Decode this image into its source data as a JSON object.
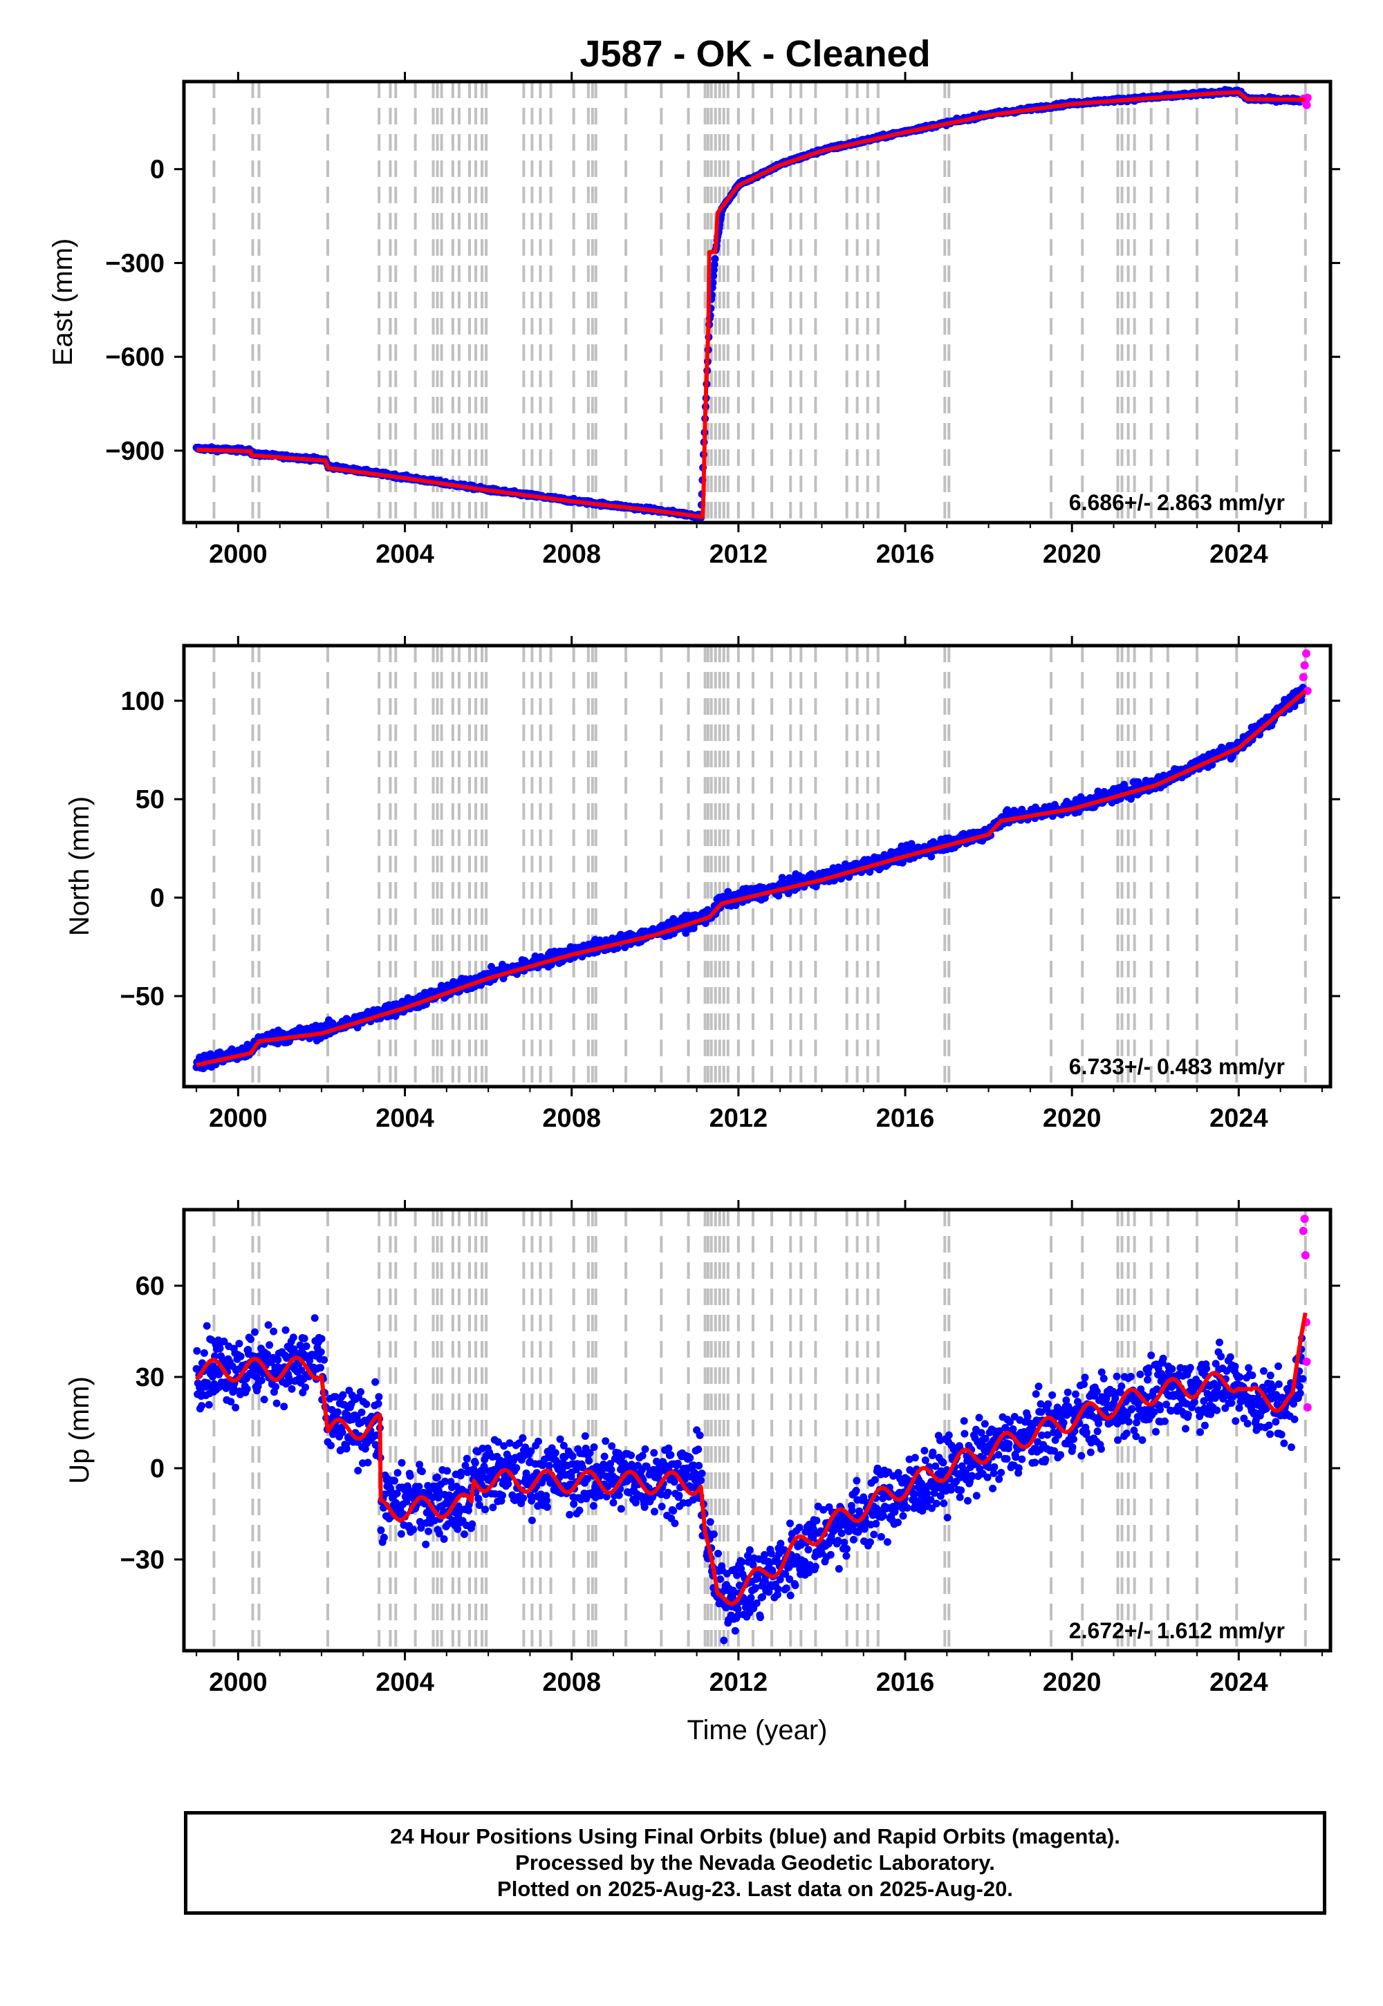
{
  "title": "J587  - OK - Cleaned",
  "colors": {
    "final": "#0000ff",
    "rapid": "#ff00ff",
    "model": "#ff0000",
    "steps": "#c0c0c0"
  },
  "step_years": [
    1999.42,
    2000.35,
    2000.5,
    2002.15,
    2003.38,
    2003.65,
    2003.78,
    2004.25,
    2004.68,
    2004.78,
    2004.88,
    2005.15,
    2005.3,
    2005.55,
    2005.7,
    2005.85,
    2005.95,
    2006.85,
    2007.05,
    2007.25,
    2007.5,
    2008.05,
    2008.4,
    2008.5,
    2008.58,
    2009.3,
    2010.15,
    2010.8,
    2011.2,
    2011.27,
    2011.35,
    2011.45,
    2011.55,
    2011.65,
    2011.75,
    2012.0,
    2012.35,
    2012.8,
    2013.25,
    2013.5,
    2013.85,
    2014.6,
    2014.85,
    2015.1,
    2015.35,
    2016.95,
    2017.05,
    2019.5,
    2020.25,
    2021.1,
    2021.2,
    2021.35,
    2021.5,
    2021.9,
    2022.3,
    2023.0,
    2023.95,
    2025.6
  ],
  "chart_data": [
    {
      "type": "scatter",
      "ylabel": "East (mm)",
      "xlim": [
        1998.7,
        2026.2
      ],
      "ylim": [
        -1130,
        280
      ],
      "xticks": [
        2000,
        2004,
        2008,
        2012,
        2016,
        2020,
        2024
      ],
      "yticks": [
        -900,
        -600,
        -300,
        0
      ],
      "rate_label": "6.686+/- 2.863 mm/yr",
      "scatter_sd": 4,
      "final_orbits_trend": [
        [
          1999.0,
          -893
        ],
        [
          2000.3,
          -900
        ],
        [
          2000.32,
          -910
        ],
        [
          2002.1,
          -930
        ],
        [
          2002.15,
          -950
        ],
        [
          2004.0,
          -985
        ],
        [
          2006.0,
          -1025
        ],
        [
          2008.0,
          -1060
        ],
        [
          2010.0,
          -1090
        ],
        [
          2011.1,
          -1110
        ],
        [
          2011.2,
          -800
        ],
        [
          2011.3,
          -500
        ],
        [
          2011.45,
          -265
        ],
        [
          2011.6,
          -130
        ],
        [
          2012.0,
          -50
        ],
        [
          2013.0,
          15
        ],
        [
          2014.0,
          60
        ],
        [
          2016.0,
          120
        ],
        [
          2018.0,
          175
        ],
        [
          2020.0,
          210
        ],
        [
          2022.0,
          230
        ],
        [
          2023.5,
          245
        ],
        [
          2024.0,
          248
        ],
        [
          2024.2,
          225
        ],
        [
          2025.6,
          220
        ]
      ],
      "model": [
        [
          1999.0,
          -897
        ],
        [
          2000.3,
          -902
        ],
        [
          2000.32,
          -915
        ],
        [
          2002.1,
          -932
        ],
        [
          2002.15,
          -955
        ],
        [
          2004.0,
          -988
        ],
        [
          2006.0,
          -1027
        ],
        [
          2008.0,
          -1062
        ],
        [
          2010.0,
          -1092
        ],
        [
          2011.15,
          -1112
        ],
        [
          2011.2,
          -800
        ],
        [
          2011.28,
          -500
        ],
        [
          2011.3,
          -265
        ],
        [
          2011.45,
          -265
        ],
        [
          2011.5,
          -140
        ],
        [
          2012.0,
          -52
        ],
        [
          2013.0,
          13
        ],
        [
          2014.0,
          58
        ],
        [
          2016.0,
          118
        ],
        [
          2018.0,
          172
        ],
        [
          2020.0,
          208
        ],
        [
          2022.0,
          228
        ],
        [
          2023.5,
          243
        ],
        [
          2024.0,
          246
        ],
        [
          2024.2,
          224
        ],
        [
          2025.6,
          222
        ]
      ],
      "rapid_orbits": [
        [
          2025.55,
          225
        ],
        [
          2025.6,
          215
        ],
        [
          2025.63,
          205
        ],
        [
          2025.65,
          228
        ]
      ]
    },
    {
      "type": "scatter",
      "ylabel": "North (mm)",
      "xlim": [
        1998.7,
        2026.2
      ],
      "ylim": [
        -96,
        128
      ],
      "xticks": [
        2000,
        2004,
        2008,
        2012,
        2016,
        2020,
        2024
      ],
      "yticks": [
        -50,
        0,
        50,
        100
      ],
      "rate_label": "6.733+/- 0.483 mm/yr",
      "scatter_sd": 2.4,
      "final_orbits_trend": [
        [
          1999.0,
          -84
        ],
        [
          2000.3,
          -78
        ],
        [
          2000.5,
          -72
        ],
        [
          2002.0,
          -68
        ],
        [
          2004.0,
          -55
        ],
        [
          2006.0,
          -40
        ],
        [
          2008.0,
          -28
        ],
        [
          2010.0,
          -18
        ],
        [
          2011.3,
          -9
        ],
        [
          2011.6,
          -2
        ],
        [
          2014.0,
          10
        ],
        [
          2016.0,
          22
        ],
        [
          2018.0,
          33
        ],
        [
          2018.3,
          40
        ],
        [
          2020.0,
          46
        ],
        [
          2022.0,
          58
        ],
        [
          2024.0,
          77
        ],
        [
          2025.6,
          106
        ]
      ],
      "model": [
        [
          1999.0,
          -85
        ],
        [
          2000.3,
          -79
        ],
        [
          2000.5,
          -73
        ],
        [
          2002.0,
          -69
        ],
        [
          2004.0,
          -56
        ],
        [
          2006.0,
          -41
        ],
        [
          2008.0,
          -29
        ],
        [
          2010.0,
          -19
        ],
        [
          2011.3,
          -10
        ],
        [
          2011.6,
          -3
        ],
        [
          2014.0,
          9
        ],
        [
          2016.0,
          21
        ],
        [
          2018.0,
          32
        ],
        [
          2018.3,
          39
        ],
        [
          2020.0,
          45
        ],
        [
          2022.0,
          57
        ],
        [
          2024.0,
          76
        ],
        [
          2025.6,
          105
        ]
      ],
      "rapid_orbits": [
        [
          2025.55,
          112
        ],
        [
          2025.58,
          118
        ],
        [
          2025.62,
          124
        ],
        [
          2025.65,
          105
        ]
      ]
    },
    {
      "type": "scatter",
      "ylabel": "Up (mm)",
      "xlim": [
        1998.7,
        2026.2
      ],
      "ylim": [
        -60,
        85
      ],
      "xticks": [
        2000,
        2004,
        2008,
        2012,
        2016,
        2020,
        2024
      ],
      "yticks": [
        -30,
        0,
        30,
        60
      ],
      "rate_label": "2.672+/- 1.612 mm/yr",
      "xlabel": "Time (year)",
      "scatter_sd": 8,
      "final_orbits_trend": [
        [
          1999.0,
          33
        ],
        [
          2002.0,
          34
        ],
        [
          2002.15,
          14
        ],
        [
          2003.4,
          14
        ],
        [
          2003.42,
          -12
        ],
        [
          2005.6,
          -10
        ],
        [
          2005.65,
          -2
        ],
        [
          2011.1,
          -3
        ],
        [
          2011.2,
          -20
        ],
        [
          2011.5,
          -42
        ],
        [
          2012.5,
          -38
        ],
        [
          2014.0,
          -22
        ],
        [
          2016.0,
          -8
        ],
        [
          2018.0,
          5
        ],
        [
          2020.0,
          16
        ],
        [
          2022.0,
          24
        ],
        [
          2024.0,
          28
        ],
        [
          2024.3,
          22
        ],
        [
          2025.3,
          20
        ],
        [
          2025.6,
          45
        ]
      ],
      "model": [
        [
          1999.0,
          32
        ],
        [
          2002.0,
          33
        ],
        [
          2002.15,
          12
        ],
        [
          2003.4,
          14
        ],
        [
          2003.42,
          -14
        ],
        [
          2005.6,
          -12
        ],
        [
          2005.65,
          -4
        ],
        [
          2011.1,
          -5
        ],
        [
          2011.2,
          -22
        ],
        [
          2011.5,
          -44
        ],
        [
          2012.5,
          -36
        ],
        [
          2014.0,
          -20
        ],
        [
          2016.0,
          -6
        ],
        [
          2018.0,
          6
        ],
        [
          2020.0,
          16
        ],
        [
          2022.0,
          25
        ],
        [
          2024.0,
          29
        ],
        [
          2024.3,
          23
        ],
        [
          2025.3,
          22
        ],
        [
          2025.6,
          50
        ]
      ],
      "rapid_orbits": [
        [
          2025.55,
          78
        ],
        [
          2025.58,
          82
        ],
        [
          2025.6,
          70
        ],
        [
          2025.62,
          48
        ],
        [
          2025.63,
          35
        ],
        [
          2025.65,
          20
        ]
      ]
    }
  ],
  "footer": {
    "line1": "24 Hour Positions Using Final Orbits (blue) and Rapid Orbits (magenta).",
    "line2": "Processed by the Nevada Geodetic Laboratory.",
    "line3": "Plotted on 2025-Aug-23. Last data on 2025-Aug-20."
  }
}
